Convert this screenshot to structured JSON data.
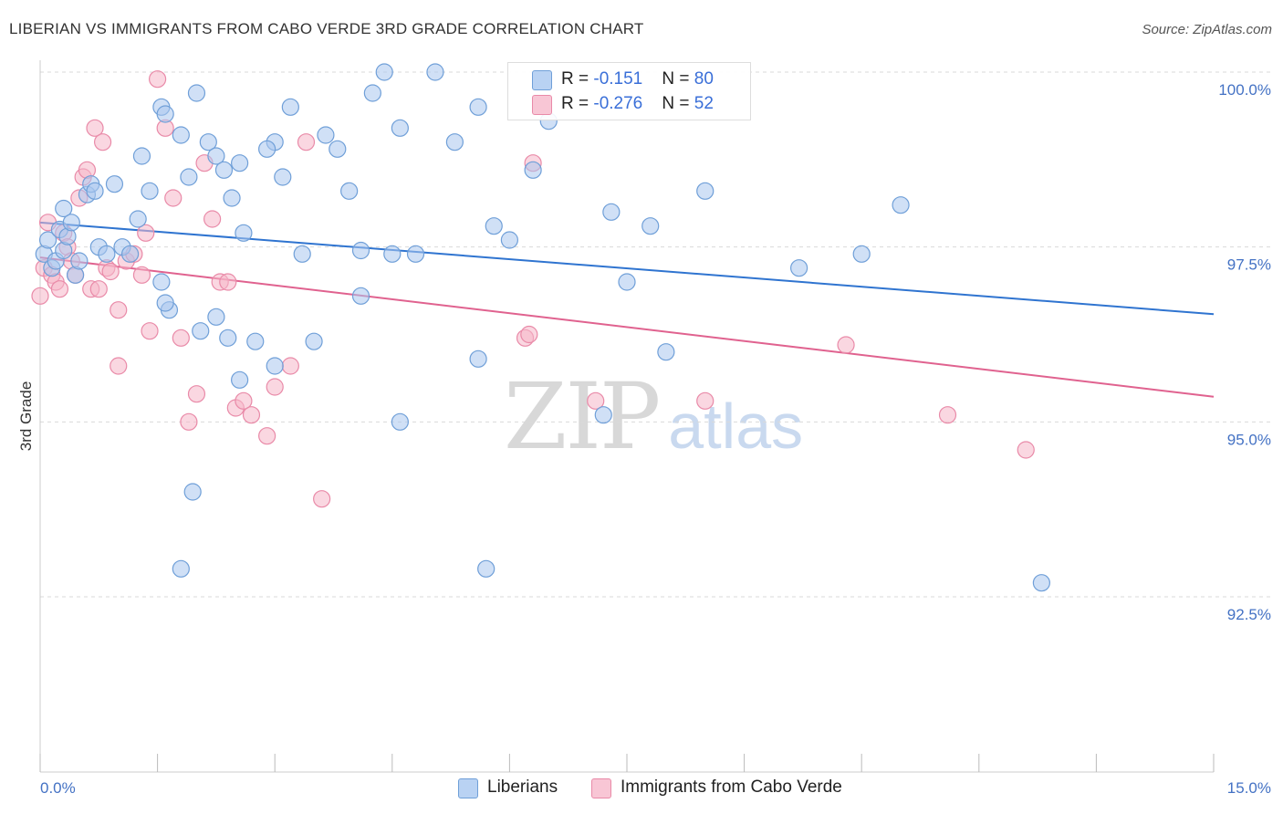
{
  "title": "LIBERIAN VS IMMIGRANTS FROM CABO VERDE 3RD GRADE CORRELATION CHART",
  "source": "Source: ZipAtlas.com",
  "watermark": {
    "zip": "ZIP",
    "atlas": "atlas"
  },
  "legend": {
    "rows": [
      {
        "r_label": "R = ",
        "r_value": "-0.151",
        "n_label": "N = ",
        "n_value": "80"
      },
      {
        "r_label": "R = ",
        "r_value": "-0.276",
        "n_label": "N = ",
        "n_value": "52"
      }
    ]
  },
  "bottom_legend": {
    "liberians": "Liberians",
    "cabo_verde": "Immigrants from Cabo Verde"
  },
  "colors": {
    "blue_fill": "#a9c6ef",
    "blue_stroke": "#6f9fd8",
    "blue_line": "#2f74d0",
    "pink_fill": "#f5b7c9",
    "pink_stroke": "#e98aa8",
    "pink_line": "#e0628f",
    "grid": "#d9d9d9",
    "tick_label": "#4472c4"
  },
  "chart_data": {
    "type": "scatter",
    "title": "LIBERIAN VS IMMIGRANTS FROM CABO VERDE 3RD GRADE CORRELATION CHART",
    "xlabel": "",
    "ylabel": "3rd Grade",
    "xlim": [
      0,
      15
    ],
    "ylim": [
      90.0,
      100.4
    ],
    "x_tick_labels": [
      "0.0%",
      "15.0%"
    ],
    "y_ticks": [
      92.5,
      95.0,
      97.5,
      100.0
    ],
    "y_tick_labels": [
      "92.5%",
      "95.0%",
      "97.5%",
      "100.0%"
    ],
    "grid": true,
    "legend_position": "top-center",
    "series": [
      {
        "name": "Liberians",
        "R": -0.151,
        "N": 80,
        "trend": {
          "x": [
            0,
            15
          ],
          "y": [
            97.85,
            96.54
          ]
        },
        "points": [
          [
            0.05,
            97.4
          ],
          [
            0.1,
            97.6
          ],
          [
            0.15,
            97.2
          ],
          [
            0.2,
            97.3
          ],
          [
            0.25,
            97.75
          ],
          [
            0.3,
            97.45
          ],
          [
            0.35,
            97.65
          ],
          [
            0.45,
            97.1
          ],
          [
            0.5,
            97.3
          ],
          [
            0.3,
            98.05
          ],
          [
            0.4,
            97.85
          ],
          [
            0.6,
            98.25
          ],
          [
            0.65,
            98.4
          ],
          [
            0.7,
            98.3
          ],
          [
            0.95,
            98.4
          ],
          [
            0.75,
            97.5
          ],
          [
            0.85,
            97.4
          ],
          [
            1.05,
            97.5
          ],
          [
            1.15,
            97.4
          ],
          [
            1.25,
            97.9
          ],
          [
            1.3,
            98.8
          ],
          [
            1.4,
            98.3
          ],
          [
            1.55,
            99.5
          ],
          [
            1.65,
            96.6
          ],
          [
            1.6,
            96.7
          ],
          [
            1.55,
            97.0
          ],
          [
            1.6,
            99.4
          ],
          [
            1.8,
            99.1
          ],
          [
            1.9,
            98.5
          ],
          [
            2.0,
            99.7
          ],
          [
            2.15,
            99.0
          ],
          [
            2.25,
            98.8
          ],
          [
            2.35,
            98.6
          ],
          [
            2.45,
            98.2
          ],
          [
            2.55,
            98.7
          ],
          [
            2.6,
            97.7
          ],
          [
            2.05,
            96.3
          ],
          [
            2.25,
            96.5
          ],
          [
            2.4,
            96.2
          ],
          [
            2.55,
            95.6
          ],
          [
            2.75,
            96.15
          ],
          [
            3.0,
            99.0
          ],
          [
            2.9,
            98.9
          ],
          [
            3.1,
            98.5
          ],
          [
            3.2,
            99.5
          ],
          [
            3.35,
            97.4
          ],
          [
            3.5,
            96.15
          ],
          [
            3.65,
            99.1
          ],
          [
            3.8,
            98.9
          ],
          [
            3.95,
            98.3
          ],
          [
            4.1,
            97.45
          ],
          [
            4.25,
            99.7
          ],
          [
            4.4,
            100.0
          ],
          [
            4.5,
            97.4
          ],
          [
            4.6,
            99.2
          ],
          [
            4.8,
            97.4
          ],
          [
            5.05,
            100.0
          ],
          [
            5.3,
            99.0
          ],
          [
            5.6,
            99.5
          ],
          [
            5.8,
            97.8
          ],
          [
            6.0,
            97.6
          ],
          [
            6.3,
            98.6
          ],
          [
            6.5,
            99.3
          ],
          [
            7.2,
            95.1
          ],
          [
            7.3,
            98.0
          ],
          [
            7.5,
            97.0
          ],
          [
            7.8,
            97.8
          ],
          [
            8.0,
            96.0
          ],
          [
            8.5,
            98.3
          ],
          [
            9.7,
            97.2
          ],
          [
            10.5,
            97.4
          ],
          [
            11.0,
            98.1
          ],
          [
            12.8,
            92.7
          ],
          [
            1.95,
            94.0
          ],
          [
            3.0,
            95.8
          ],
          [
            4.1,
            96.8
          ],
          [
            4.6,
            95.0
          ],
          [
            5.6,
            95.9
          ],
          [
            1.8,
            92.9
          ],
          [
            5.7,
            92.9
          ]
        ]
      },
      {
        "name": "Immigrants from Cabo Verde",
        "R": -0.276,
        "N": 52,
        "trend": {
          "x": [
            0,
            15
          ],
          "y": [
            97.35,
            95.36
          ]
        },
        "points": [
          [
            0.05,
            97.2
          ],
          [
            0.1,
            97.85
          ],
          [
            0.15,
            97.1
          ],
          [
            0.2,
            97.0
          ],
          [
            0.25,
            96.9
          ],
          [
            0.3,
            97.7
          ],
          [
            0.35,
            97.5
          ],
          [
            0.4,
            97.3
          ],
          [
            0.45,
            97.1
          ],
          [
            0.5,
            98.2
          ],
          [
            0.55,
            98.5
          ],
          [
            0.6,
            98.6
          ],
          [
            0.65,
            96.9
          ],
          [
            0.7,
            99.2
          ],
          [
            0.75,
            96.9
          ],
          [
            0.8,
            99.0
          ],
          [
            0.85,
            97.2
          ],
          [
            0.9,
            97.15
          ],
          [
            1.0,
            96.6
          ],
          [
            1.1,
            97.3
          ],
          [
            1.2,
            97.4
          ],
          [
            1.3,
            97.1
          ],
          [
            1.35,
            97.7
          ],
          [
            1.4,
            96.3
          ],
          [
            1.5,
            99.9
          ],
          [
            1.6,
            99.2
          ],
          [
            1.7,
            98.2
          ],
          [
            1.8,
            96.2
          ],
          [
            1.9,
            95.0
          ],
          [
            2.0,
            95.4
          ],
          [
            2.1,
            98.7
          ],
          [
            2.2,
            97.9
          ],
          [
            2.3,
            97.0
          ],
          [
            2.4,
            97.0
          ],
          [
            2.5,
            95.2
          ],
          [
            2.6,
            95.3
          ],
          [
            2.7,
            95.1
          ],
          [
            2.9,
            94.8
          ],
          [
            3.0,
            95.5
          ],
          [
            3.2,
            95.8
          ],
          [
            3.4,
            99.0
          ],
          [
            3.6,
            93.9
          ],
          [
            6.2,
            96.2
          ],
          [
            6.3,
            98.7
          ],
          [
            7.1,
            95.3
          ],
          [
            8.5,
            95.3
          ],
          [
            10.3,
            96.1
          ],
          [
            11.6,
            95.1
          ],
          [
            12.6,
            94.6
          ],
          [
            0.0,
            96.8
          ],
          [
            1.0,
            95.8
          ],
          [
            6.25,
            96.25
          ]
        ]
      }
    ]
  }
}
